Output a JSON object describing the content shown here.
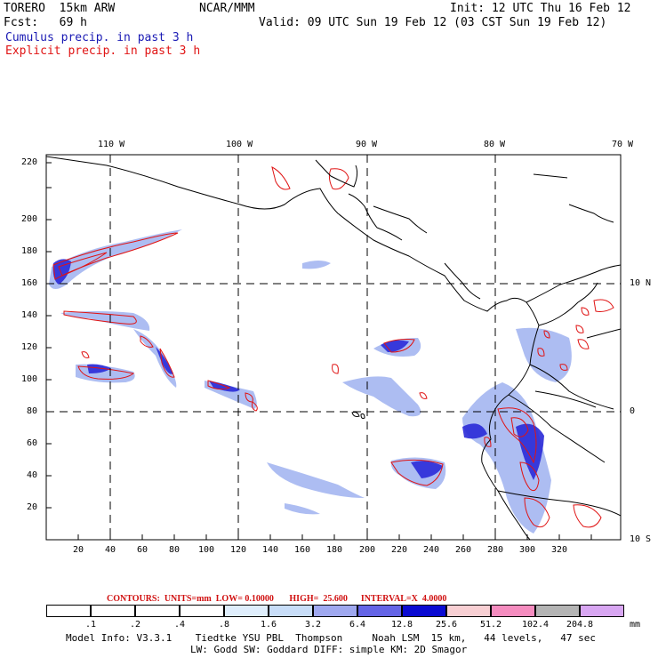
{
  "header": {
    "model": "TORERO  15km ARW",
    "org": "NCAR/MMM",
    "init": "Init: 12 UTC Thu 16 Feb 12",
    "fcst": "Fcst:   69 h",
    "valid": "Valid: 09 UTC Sun 19 Feb 12 (03 CST Sun 19 Feb 12)",
    "legend_cumulus": "Cumulus precip. in past 3 h",
    "legend_explicit": "Explicit precip. in past 3 h",
    "color_cumulus": "#1a1ab4",
    "color_explicit": "#e01414"
  },
  "map": {
    "lon_labels": [
      "110 W",
      "100 W",
      "90 W",
      "80 W",
      "70 W"
    ],
    "lat_labels": [
      "10 N",
      "0",
      "10 S"
    ],
    "x_ticks": [
      "20",
      "40",
      "60",
      "80",
      "100",
      "120",
      "140",
      "160",
      "180",
      "200",
      "220",
      "240",
      "260",
      "280",
      "300",
      "320"
    ],
    "y_ticks": [
      "20",
      "40",
      "60",
      "80",
      "100",
      "120",
      "140",
      "160",
      "180",
      "200",
      "220"
    ],
    "grid_style": "dashed"
  },
  "contour_info": {
    "label": "CONTOURS:  UNITS=mm  LOW= 0.10000       HIGH=  25.600      INTERVAL=X  4.0000"
  },
  "colorbar": {
    "unit": "mm",
    "labels": [
      ".1",
      ".2",
      ".4",
      ".8",
      "1.6",
      "3.2",
      "6.4",
      "12.8",
      "25.6",
      "51.2",
      "102.4",
      "204.8"
    ],
    "colors": [
      "#ffffff",
      "#ffffff",
      "#ffffff",
      "#ffffff",
      "#dfeefc",
      "#c8ddf8",
      "#9fa8ef",
      "#6464e6",
      "#0a0ad2",
      "#f8cfd3",
      "#f58cbf",
      "#b4b4b4",
      "#d8a6f2"
    ]
  },
  "footer": {
    "line1": "Model Info: V3.3.1    Tiedtke YSU PBL  Thompson     Noah LSM  15 km,   44 levels,   47 sec",
    "line2": "LW: Godd SW: Goddard DIFF: simple KM: 2D Smagor"
  }
}
